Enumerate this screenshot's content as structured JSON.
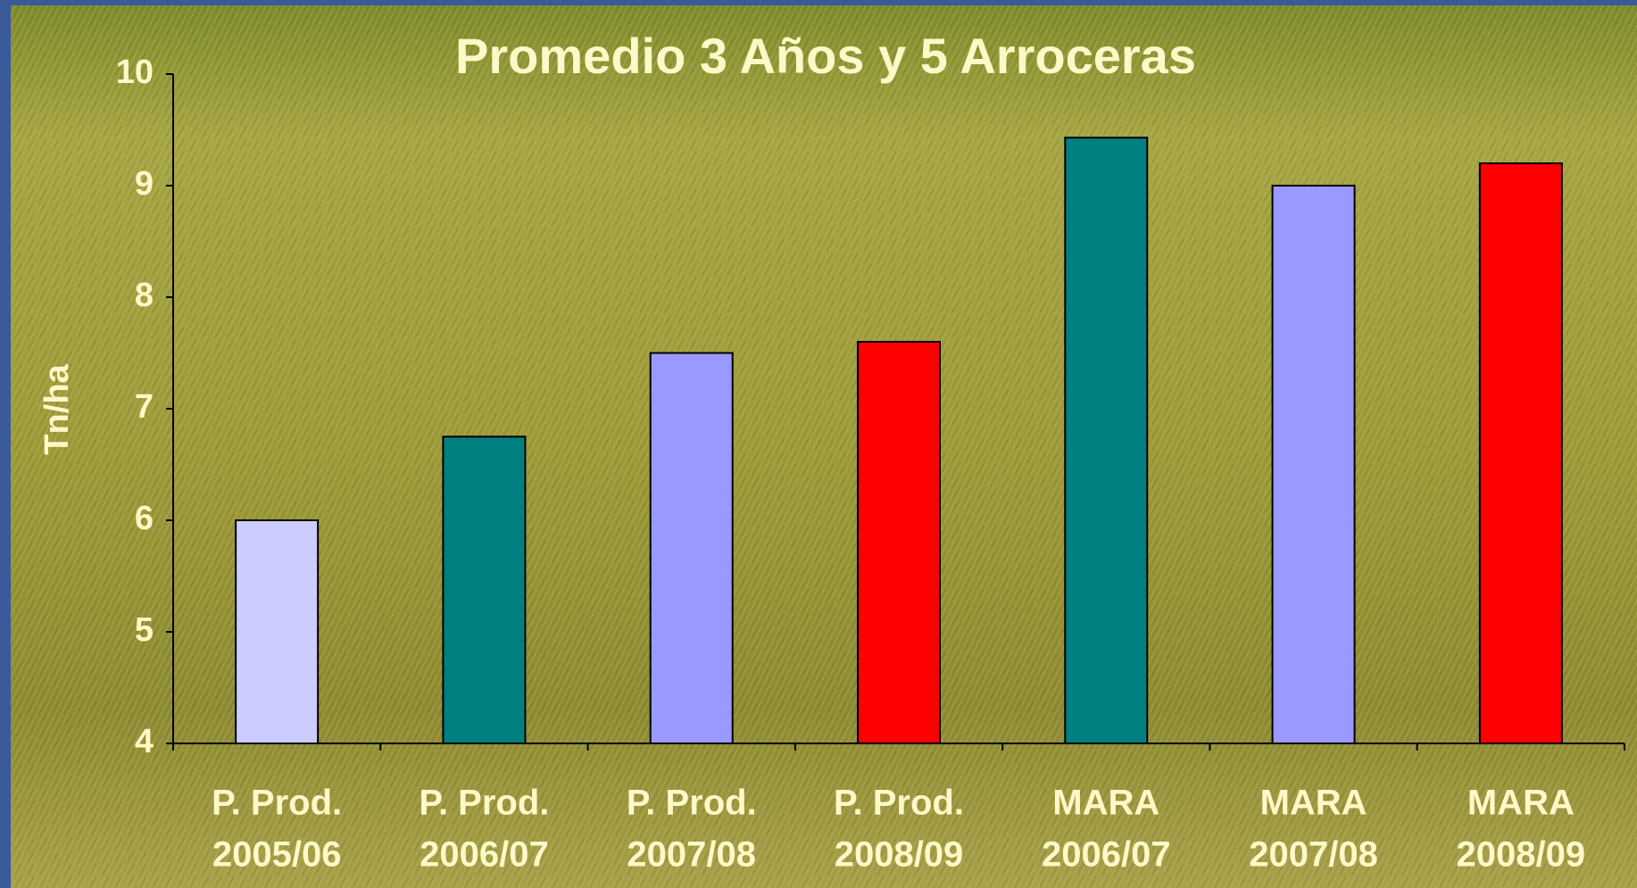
{
  "chart_data": {
    "type": "bar",
    "title": "Promedio 3 Años y 5 Arroceras",
    "y_label": "Tn/ha",
    "categories": [
      [
        "P. Prod.",
        "2005/06"
      ],
      [
        "P. Prod.",
        "2006/07"
      ],
      [
        "P. Prod.",
        "2007/08"
      ],
      [
        "P. Prod.",
        "2008/09"
      ],
      [
        "MARA",
        "2006/07"
      ],
      [
        "MARA",
        "2007/08"
      ],
      [
        "MARA",
        "2008/09"
      ]
    ],
    "values": [
      6.0,
      6.75,
      7.5,
      7.6,
      9.43,
      9.0,
      9.2
    ],
    "colors": [
      "#ccccff",
      "#008080",
      "#9999ff",
      "#ff0000",
      "#008080",
      "#9999ff",
      "#ff0000"
    ],
    "ylim": [
      4,
      10
    ],
    "yticks": [
      4,
      5,
      6,
      7,
      8,
      9,
      10
    ],
    "grid": false
  }
}
